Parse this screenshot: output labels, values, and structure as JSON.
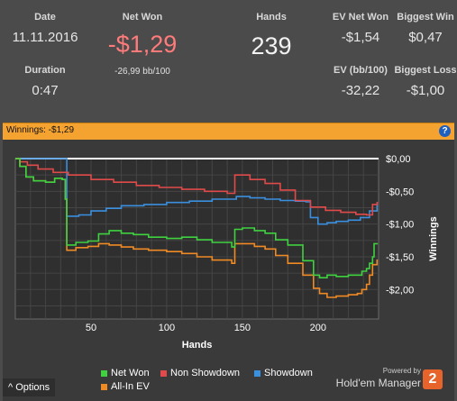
{
  "summary": {
    "date_label": "Date",
    "date_value": "11.11.2016",
    "duration_label": "Duration",
    "duration_value": "0:47",
    "net_won_label": "Net Won",
    "net_won_value": "-$1,29",
    "bb_per_100": "-26,99 bb/100",
    "hands_label": "Hands",
    "hands_value": "239",
    "ev_net_won_label": "EV Net Won",
    "ev_net_won_value": "-$1,54",
    "biggest_win_label": "Biggest Win",
    "biggest_win_value": "$0,47",
    "ev_bb100_label": "EV (bb/100)",
    "ev_bb100_value": "-32,22",
    "biggest_loss_label": "Biggest Loss",
    "biggest_loss_value": "-$1,00"
  },
  "chart_title": "Winnings: -$1,29",
  "help_icon": "?",
  "footer": {
    "options_label": "Options",
    "options_icon": "^",
    "powered_by": "Powered by",
    "brand": "Hold'em Manager",
    "logo_text": "2"
  },
  "colors": {
    "net_won": "#3fd13f",
    "non_showdown": "#e04a4a",
    "showdown": "#3a8fdf",
    "all_in_ev": "#f08a24",
    "zero_line": "#ffffff"
  },
  "chart_data": {
    "type": "line",
    "xlabel": "Hands",
    "ylabel": "Winnings",
    "xlim": [
      0,
      240
    ],
    "ylim": [
      -2.45,
      0.0
    ],
    "x_ticks": [
      50,
      100,
      150,
      200
    ],
    "y_ticks": [
      0.0,
      -0.5,
      -1.0,
      -1.5,
      -2.0
    ],
    "y_tick_labels": [
      "$0,00",
      "-$0,50",
      "-$1,00",
      "-$1,50",
      "-$2,00"
    ],
    "grid": true,
    "legend_position": "bottom",
    "series": [
      {
        "name": "Net Won",
        "color": "#3fd13f",
        "points": [
          [
            0,
            0.0
          ],
          [
            3,
            -0.12
          ],
          [
            7,
            -0.28
          ],
          [
            12,
            -0.34
          ],
          [
            20,
            -0.36
          ],
          [
            26,
            -0.3
          ],
          [
            31,
            -0.32
          ],
          [
            33,
            -0.62
          ],
          [
            34,
            -1.32
          ],
          [
            40,
            -1.28
          ],
          [
            48,
            -1.26
          ],
          [
            55,
            -1.15
          ],
          [
            62,
            -1.1
          ],
          [
            70,
            -1.14
          ],
          [
            78,
            -1.16
          ],
          [
            88,
            -1.2
          ],
          [
            100,
            -1.22
          ],
          [
            110,
            -1.2
          ],
          [
            120,
            -1.24
          ],
          [
            130,
            -1.28
          ],
          [
            143,
            -1.35
          ],
          [
            145,
            -1.08
          ],
          [
            150,
            -1.06
          ],
          [
            158,
            -1.1
          ],
          [
            165,
            -1.14
          ],
          [
            172,
            -1.24
          ],
          [
            180,
            -1.32
          ],
          [
            190,
            -1.56
          ],
          [
            197,
            -1.78
          ],
          [
            201,
            -1.82
          ],
          [
            206,
            -1.78
          ],
          [
            212,
            -1.8
          ],
          [
            220,
            -1.78
          ],
          [
            226,
            -1.78
          ],
          [
            229,
            -1.72
          ],
          [
            232,
            -1.68
          ],
          [
            234,
            -1.6
          ],
          [
            236,
            -1.5
          ],
          [
            237,
            -1.3
          ],
          [
            239,
            -1.29
          ]
        ]
      },
      {
        "name": "Non Showdown",
        "color": "#e04a4a",
        "points": [
          [
            0,
            0.0
          ],
          [
            3,
            -0.05
          ],
          [
            8,
            -0.1
          ],
          [
            15,
            -0.16
          ],
          [
            25,
            -0.21
          ],
          [
            35,
            -0.25
          ],
          [
            50,
            -0.32
          ],
          [
            65,
            -0.36
          ],
          [
            80,
            -0.41
          ],
          [
            95,
            -0.44
          ],
          [
            110,
            -0.47
          ],
          [
            125,
            -0.5
          ],
          [
            140,
            -0.53
          ],
          [
            145,
            -0.25
          ],
          [
            155,
            -0.32
          ],
          [
            165,
            -0.38
          ],
          [
            175,
            -0.48
          ],
          [
            185,
            -0.64
          ],
          [
            195,
            -0.74
          ],
          [
            205,
            -0.79
          ],
          [
            215,
            -0.82
          ],
          [
            225,
            -0.85
          ],
          [
            232,
            -0.86
          ],
          [
            236,
            -0.7
          ],
          [
            239,
            -0.66
          ]
        ]
      },
      {
        "name": "Showdown",
        "color": "#3a8fdf",
        "points": [
          [
            0,
            0.0
          ],
          [
            33,
            0.0
          ],
          [
            34,
            -0.88
          ],
          [
            42,
            -0.86
          ],
          [
            50,
            -0.8
          ],
          [
            60,
            -0.76
          ],
          [
            70,
            -0.72
          ],
          [
            85,
            -0.7
          ],
          [
            100,
            -0.67
          ],
          [
            115,
            -0.65
          ],
          [
            130,
            -0.62
          ],
          [
            143,
            -0.62
          ],
          [
            146,
            -0.58
          ],
          [
            155,
            -0.6
          ],
          [
            165,
            -0.62
          ],
          [
            175,
            -0.64
          ],
          [
            185,
            -0.65
          ],
          [
            192,
            -0.66
          ],
          [
            195,
            -0.9
          ],
          [
            200,
            -1.0
          ],
          [
            206,
            -0.98
          ],
          [
            212,
            -0.96
          ],
          [
            220,
            -0.94
          ],
          [
            228,
            -0.9
          ],
          [
            234,
            -0.8
          ],
          [
            239,
            -0.66
          ]
        ]
      },
      {
        "name": "All-In EV",
        "color": "#f08a24",
        "points": [
          [
            0,
            0.0
          ],
          [
            3,
            -0.12
          ],
          [
            7,
            -0.28
          ],
          [
            12,
            -0.34
          ],
          [
            20,
            -0.36
          ],
          [
            26,
            -0.3
          ],
          [
            31,
            -0.32
          ],
          [
            33,
            -0.62
          ],
          [
            34,
            -1.4
          ],
          [
            40,
            -1.36
          ],
          [
            48,
            -1.34
          ],
          [
            55,
            -1.3
          ],
          [
            62,
            -1.32
          ],
          [
            70,
            -1.35
          ],
          [
            78,
            -1.38
          ],
          [
            88,
            -1.4
          ],
          [
            100,
            -1.42
          ],
          [
            110,
            -1.45
          ],
          [
            120,
            -1.5
          ],
          [
            130,
            -1.55
          ],
          [
            143,
            -1.6
          ],
          [
            145,
            -1.3
          ],
          [
            150,
            -1.3
          ],
          [
            158,
            -1.34
          ],
          [
            165,
            -1.38
          ],
          [
            172,
            -1.48
          ],
          [
            180,
            -1.6
          ],
          [
            190,
            -1.78
          ],
          [
            197,
            -1.98
          ],
          [
            201,
            -2.06
          ],
          [
            206,
            -2.12
          ],
          [
            212,
            -2.1
          ],
          [
            220,
            -2.08
          ],
          [
            226,
            -2.06
          ],
          [
            229,
            -2.0
          ],
          [
            232,
            -1.92
          ],
          [
            234,
            -1.78
          ],
          [
            236,
            -1.62
          ],
          [
            239,
            -1.54
          ]
        ]
      }
    ]
  }
}
